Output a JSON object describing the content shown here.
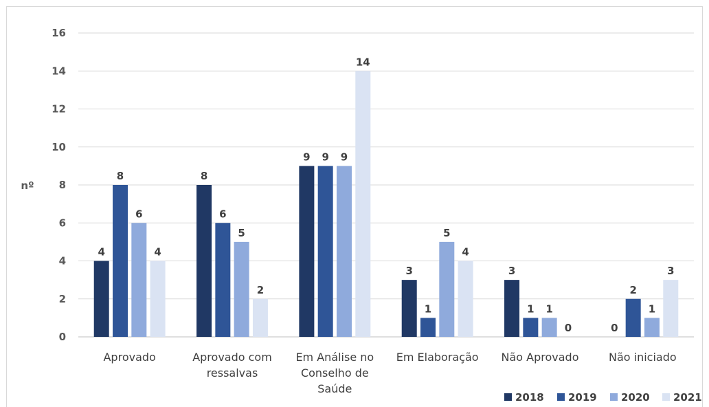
{
  "chart_data": {
    "type": "bar",
    "title": "",
    "xlabel": "",
    "ylabel": "nº",
    "ylim": [
      0,
      16
    ],
    "yticks": [
      0,
      2,
      4,
      6,
      8,
      10,
      12,
      14,
      16
    ],
    "grid": true,
    "legend_position": "bottom-right",
    "categories": [
      [
        "Aprovado"
      ],
      [
        "Aprovado com",
        "ressalvas"
      ],
      [
        "Em Análise no",
        "Conselho de",
        "Saúde"
      ],
      [
        "Em Elaboração"
      ],
      [
        "Não Aprovado"
      ],
      [
        "Não iniciado"
      ]
    ],
    "series": [
      {
        "name": "2018",
        "color": "#203864",
        "values": [
          4,
          8,
          9,
          3,
          3,
          0
        ]
      },
      {
        "name": "2019",
        "color": "#2f5597",
        "values": [
          8,
          6,
          9,
          1,
          1,
          2
        ]
      },
      {
        "name": "2020",
        "color": "#8faadc",
        "values": [
          6,
          5,
          9,
          5,
          1,
          1
        ]
      },
      {
        "name": "2021",
        "color": "#dae3f3",
        "values": [
          4,
          2,
          14,
          4,
          0,
          3
        ]
      }
    ]
  }
}
